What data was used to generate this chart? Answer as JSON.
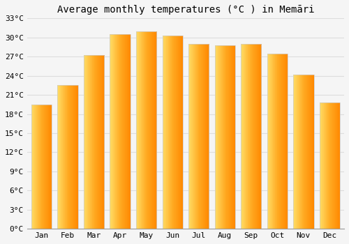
{
  "title": "Average monthly temperatures (°C ) in Memāri",
  "months": [
    "Jan",
    "Feb",
    "Mar",
    "Apr",
    "May",
    "Jun",
    "Jul",
    "Aug",
    "Sep",
    "Oct",
    "Nov",
    "Dec"
  ],
  "values": [
    19.5,
    22.5,
    27.2,
    30.5,
    31.0,
    30.3,
    29.0,
    28.8,
    29.0,
    27.5,
    24.2,
    19.8
  ],
  "ylim": [
    0,
    33
  ],
  "yticks": [
    0,
    3,
    6,
    9,
    12,
    15,
    18,
    21,
    24,
    27,
    30,
    33
  ],
  "background_color": "#f5f5f5",
  "grid_color": "#dddddd",
  "bar_color_light": "#FFCC44",
  "bar_color_mid": "#FFAA22",
  "bar_color_dark": "#FF9900",
  "bar_edge_color": "#cccccc",
  "title_fontsize": 10,
  "tick_fontsize": 8,
  "bar_width": 0.78
}
